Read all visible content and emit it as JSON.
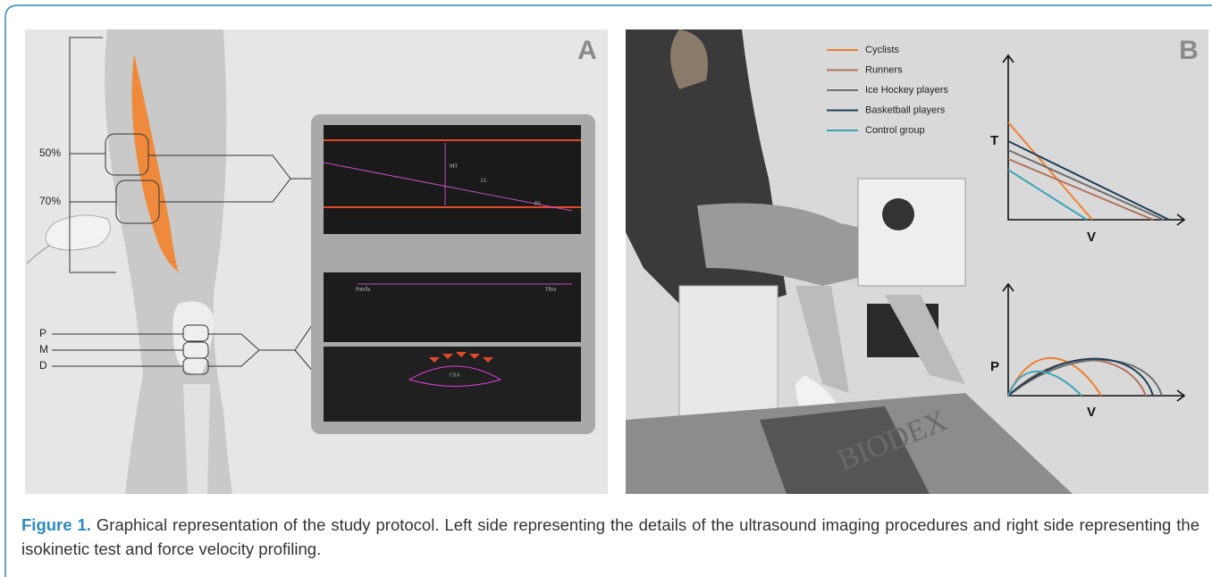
{
  "panel_a": {
    "label": "A",
    "levels": [
      "50%",
      "70%"
    ],
    "sites": [
      "P",
      "M",
      "D"
    ],
    "ultrasound_labels": [
      "MT",
      "LL",
      "PA",
      "Patella",
      "Tibia",
      "CSA"
    ]
  },
  "panel_b": {
    "label": "B",
    "device": "BIODEX",
    "legend": [
      {
        "name": "Cyclists",
        "color": "#f07f2e"
      },
      {
        "name": "Runners",
        "color": "#b0735a"
      },
      {
        "name": "Ice Hockey players",
        "color": "#707070"
      },
      {
        "name": "Basketball players",
        "color": "#1e3f5a"
      },
      {
        "name": "Control group",
        "color": "#3fa3b8"
      }
    ],
    "torque_velocity": {
      "y_label": "T",
      "x_label": "V"
    },
    "power_velocity": {
      "y_label": "P",
      "x_label": "V"
    }
  },
  "caption": {
    "label": "Figure 1.",
    "text": "Graphical representation of the study protocol. Left side representing the details of the ultrasound imaging procedures and right side representing the isokinetic test and force velocity profiling."
  }
}
